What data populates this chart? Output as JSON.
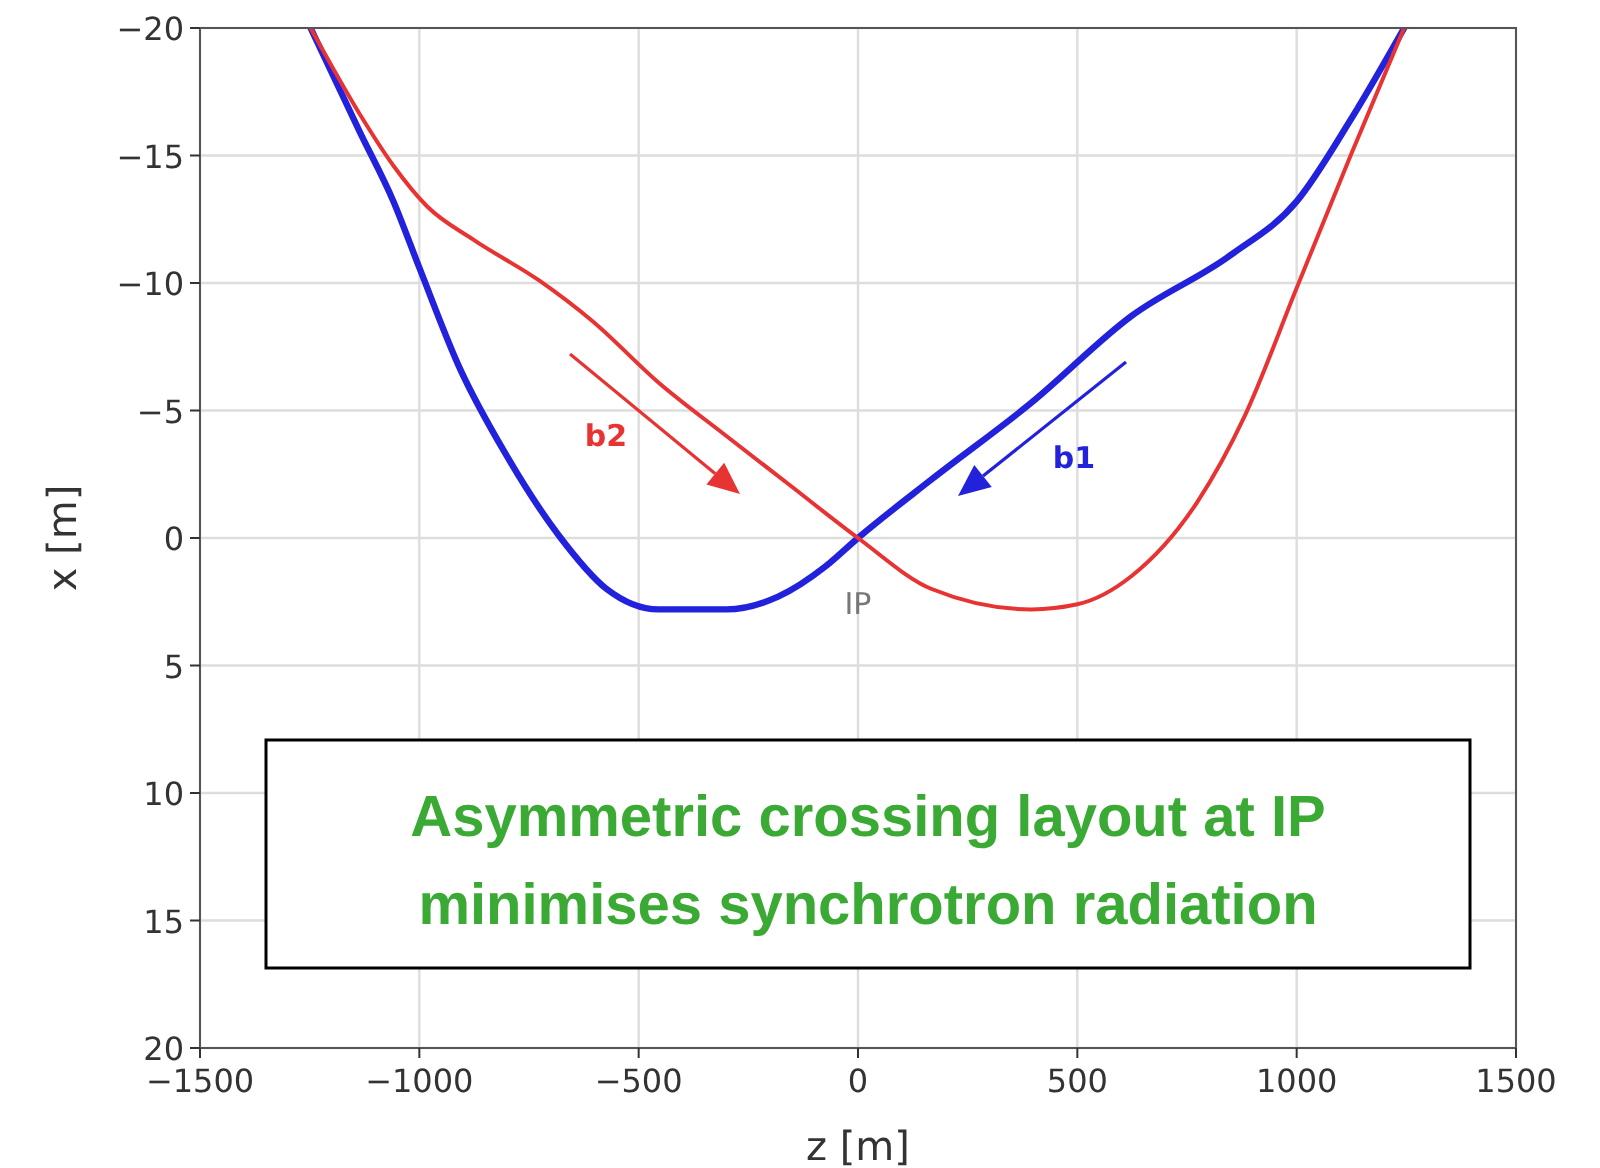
{
  "chart_data": {
    "type": "line",
    "xlabel": "z [m]",
    "ylabel": "x [m]",
    "xlim": [
      -1500,
      1500
    ],
    "ylim": [
      20,
      -20
    ],
    "xticks": [
      {
        "value": -1500,
        "label": "−1500"
      },
      {
        "value": -1000,
        "label": "−1000"
      },
      {
        "value": -500,
        "label": "−500"
      },
      0,
      500,
      1000,
      1500
    ],
    "yticks": [
      {
        "value": -20,
        "label": "−20"
      },
      {
        "value": -15,
        "label": "−15"
      },
      {
        "value": -10,
        "label": "−10"
      },
      {
        "value": -5,
        "label": "−5"
      },
      0,
      5,
      10,
      15,
      20
    ],
    "grid": true,
    "series": [
      {
        "name": "b1",
        "color": "#2222dd",
        "x": [
          -1248,
          -1135,
          -1059,
          -1000,
          -909,
          -800,
          -682,
          -573,
          -455,
          -300,
          -182,
          -73,
          0,
          168,
          395,
          623,
          850,
          1000,
          1123,
          1245
        ],
        "values": [
          -20,
          -15.9,
          -13.2,
          -10.6,
          -6.7,
          -3.2,
          -0.1,
          2.0,
          2.8,
          2.8,
          2.3,
          1.1,
          0,
          -2.3,
          -5.3,
          -8.7,
          -11.1,
          -13.2,
          -16.4,
          -20
        ]
      },
      {
        "name": "b2",
        "color": "#e83333",
        "x": [
          -1248,
          -1135,
          -1059,
          -982,
          -877,
          -727,
          -605,
          -455,
          -300,
          -150,
          0,
          168,
          395,
          500,
          623,
          773,
          882,
          1000,
          1123,
          1245
        ],
        "values": [
          -20,
          -16.6,
          -14.6,
          -13.0,
          -11.7,
          -10.1,
          -8.5,
          -6.1,
          -4.0,
          -2.0,
          0,
          2.0,
          2.8,
          2.6,
          1.5,
          -1.4,
          -4.8,
          -9.8,
          -15.0,
          -20
        ]
      }
    ],
    "annotations": [
      {
        "text": "IP",
        "x": 0,
        "y": 0
      },
      "Asymmetric crossing layout at IP minimises synchrotron radiation"
    ]
  }
}
